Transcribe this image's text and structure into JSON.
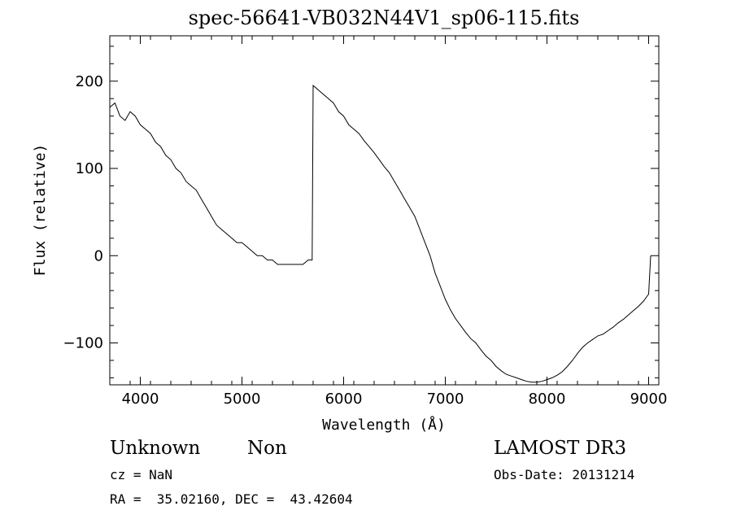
{
  "chart_data": {
    "type": "line",
    "title": "spec-56641-VB032N44V1_sp06-115.fits",
    "xlabel": "Wavelength (Å)",
    "ylabel": "Flux (relative)",
    "xlim": [
      3700,
      9100
    ],
    "ylim": [
      -148,
      252
    ],
    "xticks": [
      4000,
      5000,
      6000,
      7000,
      8000,
      9000
    ],
    "yticks": [
      -100,
      0,
      100,
      200
    ],
    "grid": false,
    "series": [
      {
        "x": [
          3700,
          3750,
          3800,
          3850,
          3900,
          3950,
          4000,
          4050,
          4100,
          4150,
          4200,
          4250,
          4300,
          4350,
          4400,
          4450,
          4500,
          4550,
          4600,
          4650,
          4700,
          4750,
          4800,
          4850,
          4900,
          4950,
          5000,
          5050,
          5100,
          5150,
          5200,
          5250,
          5300,
          5350,
          5400,
          5450,
          5500,
          5550,
          5600,
          5650,
          5690,
          5700,
          5750,
          5800,
          5850,
          5900,
          5950,
          6000,
          6050,
          6100,
          6150,
          6200,
          6250,
          6300,
          6350,
          6400,
          6450,
          6500,
          6550,
          6600,
          6650,
          6700,
          6750,
          6800,
          6850,
          6900,
          6950,
          7000,
          7050,
          7100,
          7150,
          7200,
          7250,
          7300,
          7350,
          7400,
          7450,
          7500,
          7550,
          7600,
          7650,
          7700,
          7750,
          7800,
          7850,
          7900,
          7950,
          8000,
          8050,
          8100,
          8150,
          8200,
          8250,
          8300,
          8350,
          8400,
          8450,
          8500,
          8550,
          8600,
          8650,
          8700,
          8750,
          8800,
          8850,
          8900,
          8950,
          9000,
          9020
        ],
        "y": [
          170,
          175,
          160,
          155,
          165,
          160,
          150,
          145,
          140,
          130,
          125,
          115,
          110,
          100,
          95,
          85,
          80,
          75,
          65,
          55,
          45,
          35,
          30,
          25,
          20,
          15,
          15,
          10,
          5,
          0,
          0,
          -5,
          -5,
          -10,
          -10,
          -10,
          -10,
          -10,
          -10,
          -5,
          -5,
          195,
          190,
          185,
          180,
          175,
          165,
          160,
          150,
          145,
          140,
          132,
          125,
          118,
          110,
          102,
          95,
          85,
          75,
          65,
          55,
          45,
          30,
          15,
          0,
          -20,
          -35,
          -50,
          -62,
          -72,
          -80,
          -88,
          -95,
          -100,
          -108,
          -115,
          -120,
          -127,
          -132,
          -136,
          -138,
          -140,
          -142,
          -144,
          -145,
          -145,
          -144,
          -142,
          -140,
          -137,
          -133,
          -127,
          -120,
          -112,
          -105,
          -100,
          -96,
          -92,
          -90,
          -86,
          -82,
          -77,
          -73,
          -68,
          -63,
          -58,
          -52,
          -44,
          0
        ]
      }
    ]
  },
  "annotations": {
    "class": "Unknown",
    "subclass": "Non",
    "survey": "LAMOST DR3",
    "cz": "cz = NaN",
    "obs_date": "Obs-Date: 20131214",
    "coords": "RA =  35.02160, DEC =  43.42604"
  }
}
